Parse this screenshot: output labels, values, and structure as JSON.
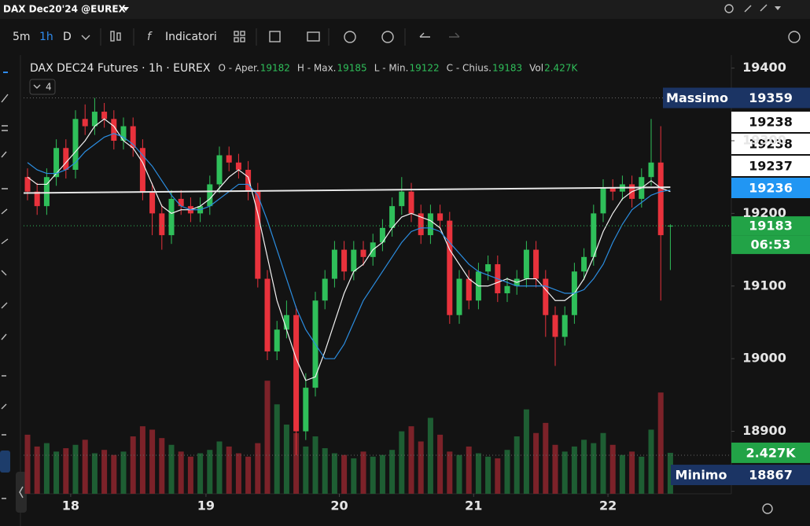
{
  "header": {
    "symbol": "DAX Dec20'24 @EUREX"
  },
  "toolbar": {
    "intervals": [
      "5m",
      "1h",
      "D"
    ],
    "indicators": "Indicatori"
  },
  "chart_data": {
    "type": "candlestick",
    "title": "DAX DEC24 Futures · 1h · EUREX",
    "badge": "4",
    "legend": [
      {
        "label": "O - Aper.",
        "value": 19182
      },
      {
        "label": "H - Max.",
        "value": 19185
      },
      {
        "label": "L - Min.",
        "value": 19122
      },
      {
        "label": "C - Chius.",
        "value": 19183
      },
      {
        "label": "Vol",
        "value": 2427,
        "value_label": "2.427K"
      }
    ],
    "xlim": [
      -0.41,
      73.36
    ],
    "xticks": [
      {
        "value": 4.5,
        "label": "18"
      },
      {
        "value": 18.6,
        "label": "19"
      },
      {
        "value": 32.5,
        "label": "20"
      },
      {
        "value": 46.5,
        "label": "21"
      },
      {
        "value": 60.5,
        "label": "22"
      }
    ],
    "ylim": [
      18814,
      19418
    ],
    "yticks": [
      18900,
      19000,
      19100,
      19200,
      19300,
      19400
    ],
    "y2lim": [
      0,
      26000
    ],
    "grid": false,
    "up_color": "#2fbf5a",
    "down_color": "#e8323c",
    "volume_up_color": "#1e5e33",
    "volume_down_color": "#7c2229",
    "open": [
      19250,
      19230,
      19210,
      19250,
      19290,
      19260,
      19330,
      19320,
      19340,
      19330,
      19300,
      19320,
      19290,
      19230,
      19200,
      19170,
      19220,
      19210,
      19200,
      19210,
      19240,
      19280,
      19270,
      19260,
      19230,
      19110,
      19010,
      19040,
      19060,
      18900,
      18960,
      19080,
      19110,
      19150,
      19120,
      19150,
      19140,
      19160,
      19180,
      19210,
      19230,
      19200,
      19170,
      19200,
      19190,
      19060,
      19110,
      19080,
      19120,
      19130,
      19090,
      19100,
      19110,
      19150,
      19110,
      19060,
      19030,
      19060,
      19120,
      19140,
      19200,
      19235,
      19230,
      19240,
      19220,
      19250,
      19270,
      19182
    ],
    "high": [
      19262,
      19242,
      19262,
      19302,
      19302,
      19342,
      19350,
      19359,
      19352,
      19342,
      19332,
      19332,
      19302,
      19242,
      19212,
      19232,
      19232,
      19222,
      19222,
      19252,
      19292,
      19292,
      19282,
      19272,
      19242,
      19122,
      19052,
      19080,
      19072,
      18980,
      19092,
      19122,
      19162,
      19162,
      19162,
      19162,
      19172,
      19192,
      19222,
      19250,
      19242,
      19212,
      19212,
      19212,
      19202,
      19122,
      19122,
      19132,
      19142,
      19142,
      19112,
      19122,
      19162,
      19162,
      19122,
      19072,
      19072,
      19132,
      19152,
      19212,
      19247,
      19247,
      19252,
      19252,
      19262,
      19330,
      19320,
      19185
    ],
    "low": [
      19218,
      19198,
      19198,
      19238,
      19248,
      19248,
      19308,
      19308,
      19318,
      19288,
      19288,
      19278,
      19218,
      19170,
      19150,
      19158,
      19198,
      19188,
      19188,
      19198,
      19228,
      19258,
      19248,
      19218,
      19098,
      18998,
      18998,
      19028,
      18867,
      18888,
      18948,
      19068,
      19098,
      19108,
      19108,
      19128,
      19128,
      19148,
      19168,
      19198,
      19188,
      19158,
      19158,
      19178,
      19048,
      19048,
      19068,
      19068,
      19108,
      19078,
      19078,
      19088,
      19098,
      19098,
      19030,
      18990,
      19018,
      19048,
      19108,
      19128,
      19188,
      19218,
      19218,
      19208,
      19208,
      19238,
      19080,
      19122
    ],
    "close": [
      19230,
      19210,
      19250,
      19290,
      19260,
      19330,
      19320,
      19340,
      19330,
      19300,
      19320,
      19290,
      19230,
      19200,
      19170,
      19220,
      19210,
      19200,
      19210,
      19240,
      19280,
      19270,
      19260,
      19230,
      19110,
      19010,
      19040,
      19060,
      18900,
      18960,
      19080,
      19110,
      19150,
      19120,
      19150,
      19140,
      19160,
      19180,
      19210,
      19230,
      19200,
      19170,
      19200,
      19190,
      19060,
      19110,
      19080,
      19120,
      19130,
      19090,
      19100,
      19110,
      19150,
      19110,
      19060,
      19030,
      19060,
      19120,
      19140,
      19200,
      19235,
      19230,
      19240,
      19220,
      19250,
      19270,
      19170,
      19183
    ],
    "volume": [
      3500,
      2800,
      3000,
      2500,
      2700,
      2900,
      3200,
      2400,
      2600,
      2300,
      2500,
      3400,
      4000,
      3800,
      3300,
      2900,
      2500,
      2200,
      2400,
      2600,
      3100,
      2800,
      2400,
      2200,
      3000,
      6700,
      5300,
      4100,
      3600,
      2800,
      3400,
      2700,
      2400,
      2300,
      2100,
      2500,
      2200,
      2300,
      2600,
      3700,
      4000,
      3100,
      4500,
      3500,
      2500,
      2300,
      2800,
      2400,
      2200,
      2100,
      2600,
      3400,
      5000,
      3600,
      4200,
      2900,
      2500,
      2800,
      3200,
      3000,
      3600,
      2900,
      2300,
      2500,
      2200,
      3800,
      6000,
      2427
    ],
    "ma_lines": [
      {
        "color": "#f2f2f2",
        "values": [
          19250,
          19240,
          19240,
          19255,
          19270,
          19285,
          19300,
          19320,
          19330,
          19320,
          19300,
          19290,
          19270,
          19240,
          19210,
          19200,
          19205,
          19205,
          19210,
          19220,
          19235,
          19250,
          19260,
          19250,
          19200,
          19140,
          19080,
          19040,
          19000,
          18970,
          18975,
          19010,
          19050,
          19090,
          19120,
          19130,
          19150,
          19160,
          19180,
          19195,
          19200,
          19195,
          19190,
          19180,
          19150,
          19130,
          19110,
          19100,
          19100,
          19105,
          19110,
          19105,
          19110,
          19110,
          19095,
          19080,
          19080,
          19090,
          19110,
          19140,
          19175,
          19200,
          19220,
          19230,
          19235,
          19245,
          19235,
          19230
        ]
      },
      {
        "color": "#2b8de0",
        "values": [
          19270,
          19260,
          19255,
          19255,
          19260,
          19270,
          19285,
          19295,
          19305,
          19310,
          19305,
          19295,
          19280,
          19265,
          19245,
          19225,
          19210,
          19205,
          19205,
          19210,
          19220,
          19230,
          19240,
          19240,
          19225,
          19190,
          19150,
          19110,
          19070,
          19040,
          19020,
          19000,
          19000,
          19020,
          19050,
          19080,
          19100,
          19120,
          19140,
          19160,
          19175,
          19180,
          19180,
          19175,
          19160,
          19145,
          19130,
          19120,
          19115,
          19110,
          19105,
          19100,
          19100,
          19100,
          19100,
          19095,
          19090,
          19090,
          19095,
          19110,
          19130,
          19160,
          19185,
          19205,
          19215,
          19225,
          19230,
          19232
        ]
      }
    ],
    "trend_line": {
      "color": "#e6e6e6",
      "values": [
        19228,
        19236
      ]
    },
    "price_labels": [
      {
        "label": "Massimo",
        "value": 19359
      },
      {
        "value": 19238
      },
      {
        "value": 19238
      },
      {
        "value": 19237
      },
      {
        "value": 19236
      },
      {
        "value": 19183,
        "countdown": "06:53"
      },
      {
        "label": "Minimo",
        "value": 18867
      }
    ]
  }
}
